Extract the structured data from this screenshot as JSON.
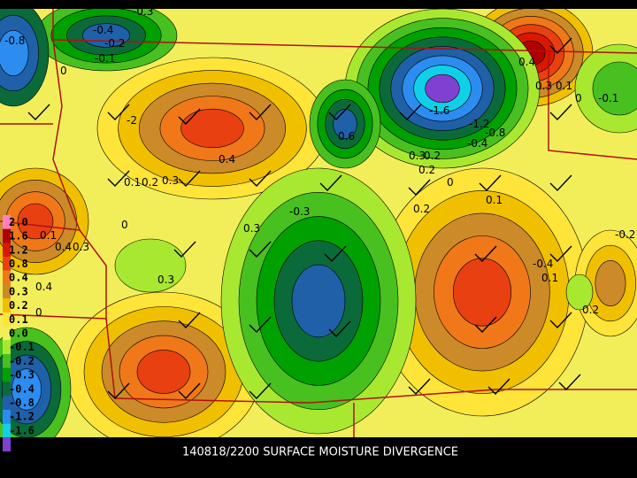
{
  "caption": "140818/2200 SURFACE MOISTURE DIVERGENCE",
  "legend": {
    "labels": [
      "2.0",
      "1.6",
      "1.2",
      "0.8",
      "0.4",
      "0.3",
      "0.2",
      "0.1",
      "0.0",
      "-0.1",
      "-0.2",
      "-0.3",
      "-0.4",
      "-0.8",
      "-1.2",
      "-1.6"
    ]
  },
  "contour_labels": [
    "-0.8",
    "-0.4",
    "-0.3",
    "-0.2",
    "-0.1",
    "0",
    "0.4",
    "0.1",
    "0.2",
    "0.3",
    "-2",
    "-1.6",
    "-1.2",
    "-0.8",
    "-0.4",
    "0.6",
    "0.4",
    "0.3",
    "0.1",
    "0",
    "-0.1",
    "0.2",
    "0",
    "0.3",
    "0.2",
    "0.1",
    "0",
    "-0.3",
    "0.2",
    "0.1",
    "0.4",
    "0.3",
    "-0.4",
    "0.1",
    "0.2",
    "0.3",
    "0.4",
    "0",
    "0.3",
    "-0.2"
  ]
}
